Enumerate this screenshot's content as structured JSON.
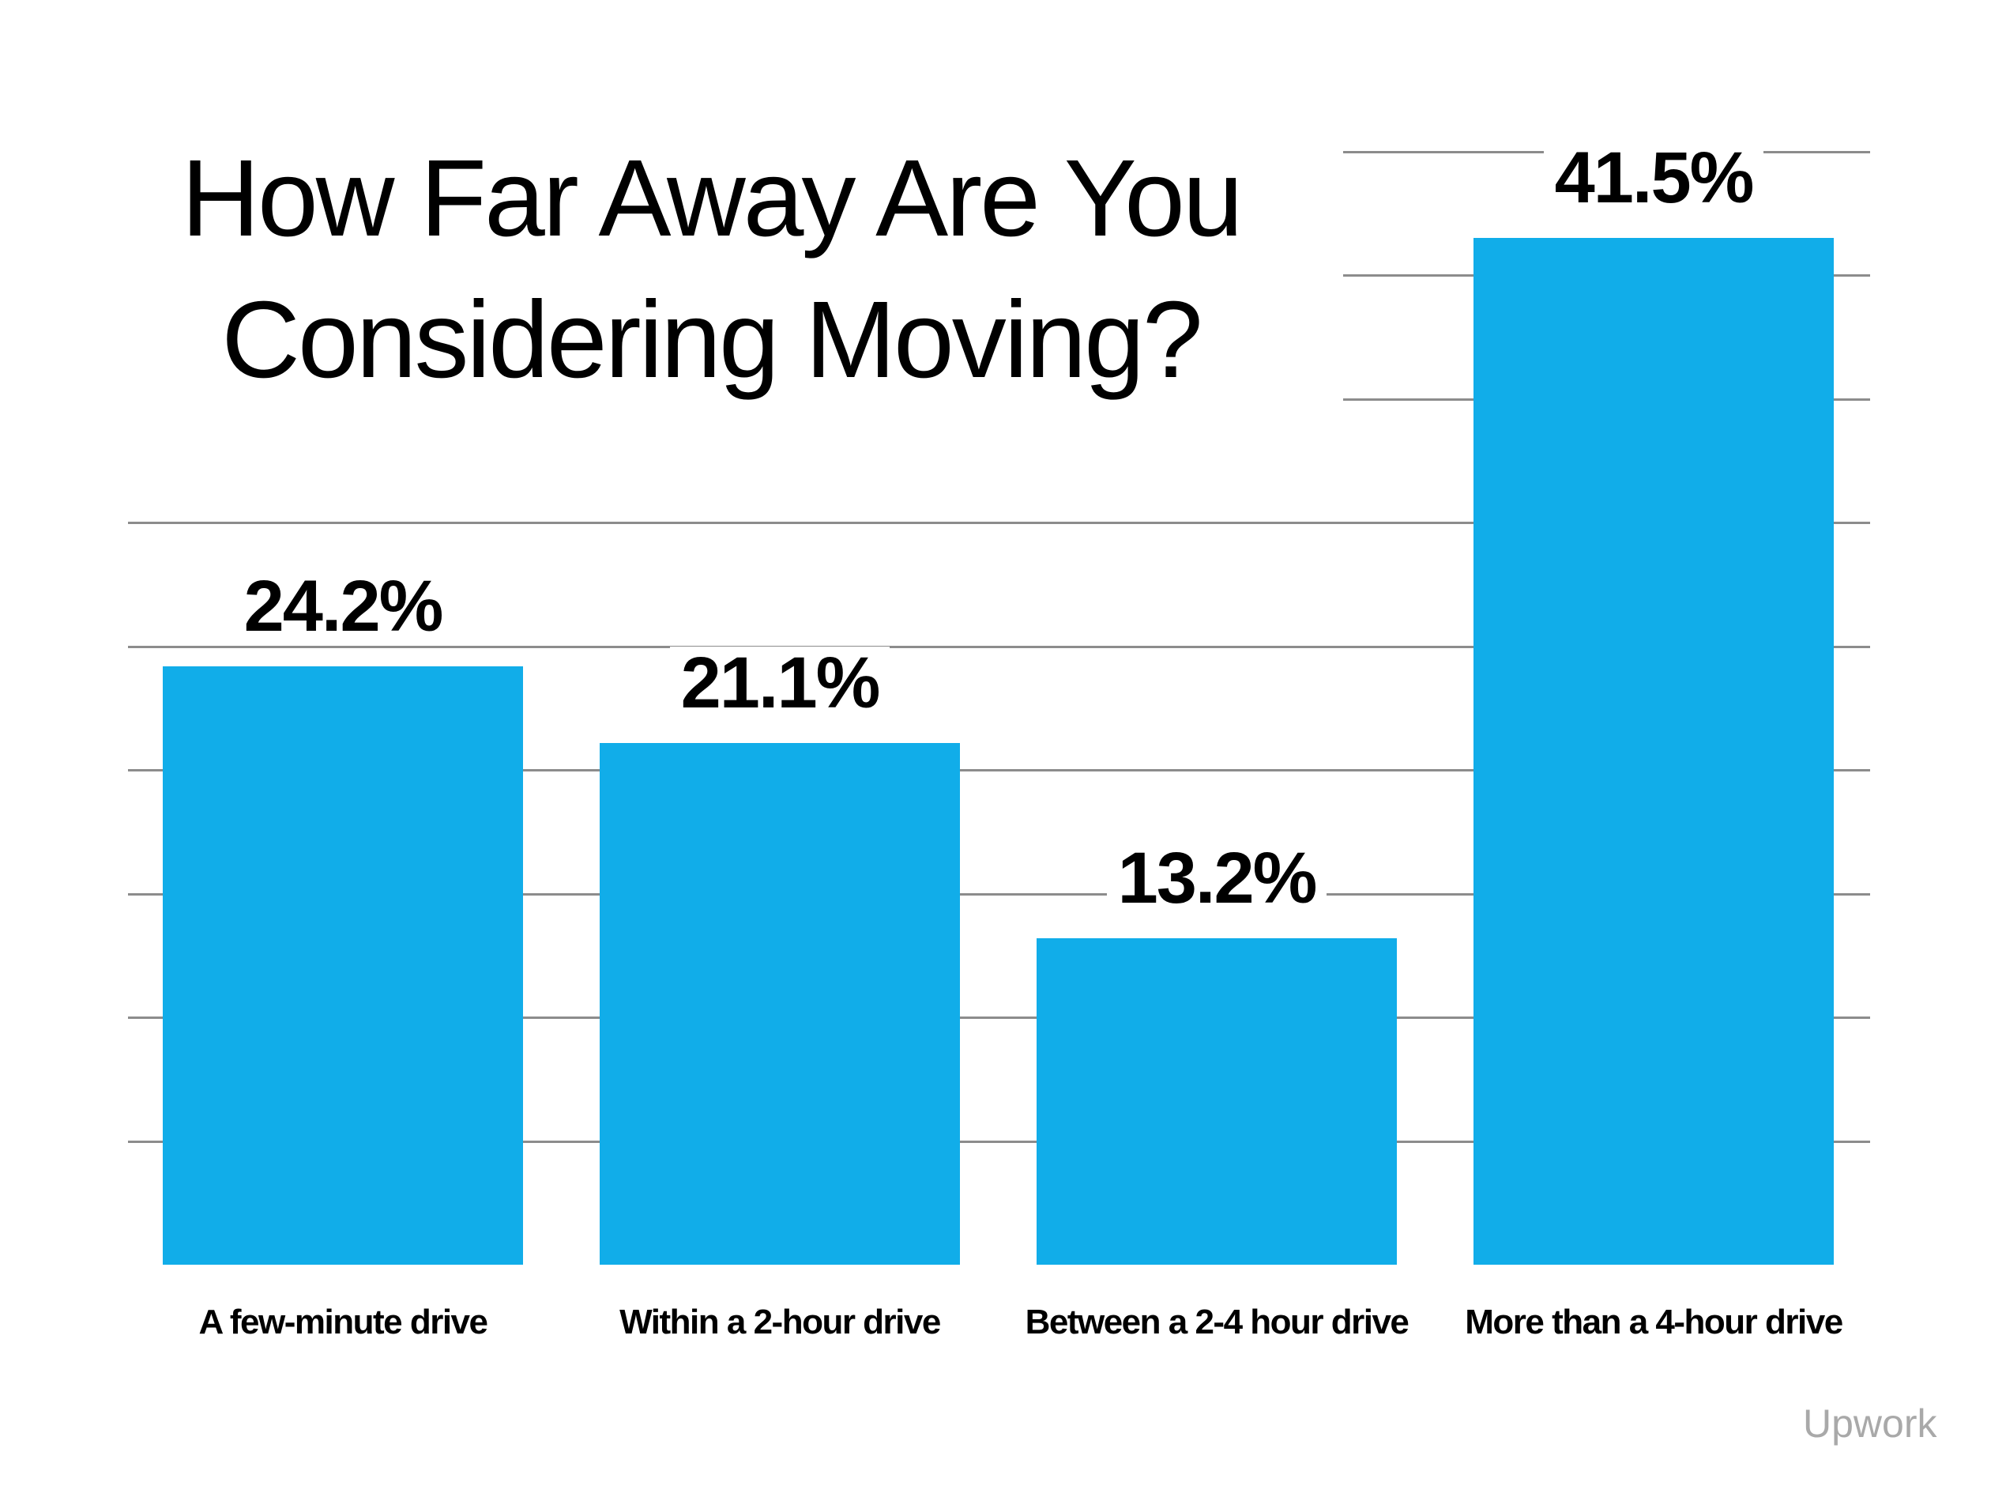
{
  "chart_data": {
    "type": "bar",
    "title_line1": "How Far Away Are You",
    "title_line2": "Considering Moving?",
    "categories": [
      "A few-minute drive",
      "Within a 2-hour drive",
      "Between a 2-4 hour drive",
      "More than a 4-hour drive"
    ],
    "values": [
      24.2,
      21.1,
      13.2,
      41.5
    ],
    "value_labels": [
      "24.2%",
      "21.1%",
      "13.2%",
      "41.5%"
    ],
    "xlabel": "",
    "ylabel": "",
    "ylim": [
      0,
      45
    ],
    "gridline_step_percent": 5,
    "grid": "horizontal",
    "legend": "none",
    "bar_color": "#11ADE9",
    "gridline_color": "#8C8C8C",
    "label_color": "#000000"
  },
  "watermark": {
    "label": "Upwork"
  }
}
